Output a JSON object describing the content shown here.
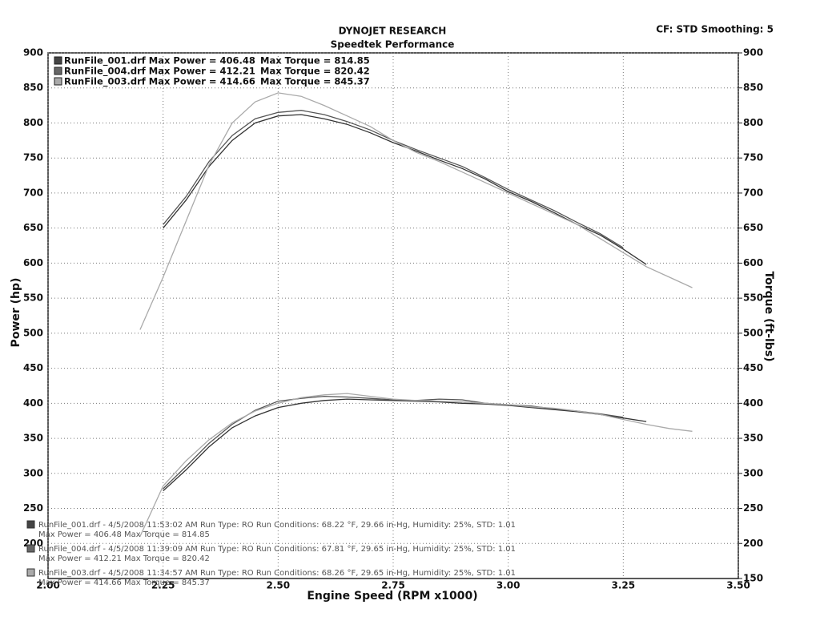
{
  "chart_data": {
    "type": "line",
    "title": "DYNOJET RESEARCH",
    "subtitle": "Speedtek Performance",
    "header_right": "CF: STD  Smoothing: 5",
    "x_label": "Engine Speed (RPM x1000)",
    "y_label": "Power (hp)",
    "y2_label": "Torque (ft-lbs)",
    "xlim": [
      2.0,
      3.5
    ],
    "xticks": [
      {
        "value": 2.0,
        "label": "2.00"
      },
      {
        "value": 2.25,
        "label": "2.25"
      },
      {
        "value": 2.5,
        "label": "2.50"
      },
      {
        "value": 2.75,
        "label": "2.75"
      },
      {
        "value": 3.0,
        "label": "3.00"
      },
      {
        "value": 3.25,
        "label": "3.25"
      },
      {
        "value": 3.5,
        "label": "3.50"
      }
    ],
    "ylim": [
      150,
      900
    ],
    "yticks": [
      200,
      250,
      300,
      350,
      400,
      450,
      500,
      550,
      600,
      650,
      700,
      750,
      800,
      850,
      900
    ],
    "y2lim": [
      150,
      900
    ],
    "y2ticks": [
      150,
      200,
      250,
      300,
      350,
      400,
      450,
      500,
      550,
      600,
      650,
      700,
      750,
      800,
      850,
      900
    ],
    "grid": true,
    "legend": [
      {
        "text": "RunFile_001.drf Max Power = 406.48",
        "torque": "Max Torque = 814.85",
        "color": "#444444"
      },
      {
        "text": "RunFile_004.drf Max Power = 412.21",
        "torque": "Max Torque = 820.42",
        "color": "#666666"
      },
      {
        "text": "RunFile_003.drf Max Power = 414.66",
        "torque": "Max Torque = 845.37",
        "color": "#aaaaaa"
      }
    ],
    "x": [
      2.2,
      2.25,
      2.3,
      2.35,
      2.4,
      2.45,
      2.5,
      2.55,
      2.6,
      2.65,
      2.7,
      2.75,
      2.8,
      2.85,
      2.9,
      2.95,
      3.0,
      3.05,
      3.1,
      3.15,
      3.2,
      3.25,
      3.3,
      3.35,
      3.4
    ],
    "series": [
      {
        "name": "RunFile_001.drf",
        "color": "#333333",
        "axis": "y",
        "values": [
          null,
          275,
          305,
          338,
          365,
          382,
          394,
          400,
          404,
          406,
          405,
          404,
          403,
          402,
          400,
          399,
          397,
          394,
          391,
          388,
          384,
          379,
          374,
          null,
          null
        ]
      },
      {
        "name": "RunFile_004.drf",
        "color": "#555555",
        "axis": "y",
        "values": [
          null,
          278,
          310,
          343,
          370,
          390,
          403,
          407,
          410,
          409,
          407,
          405,
          404,
          406,
          405,
          400,
          398,
          396,
          392,
          389,
          385,
          380,
          null,
          null,
          null
        ]
      },
      {
        "name": "RunFile_003.drf",
        "color": "#aaaaaa",
        "axis": "y",
        "values": [
          210,
          282,
          318,
          348,
          372,
          389,
          400,
          408,
          412,
          414,
          410,
          406,
          404,
          403,
          402,
          400,
          398,
          395,
          393,
          389,
          384,
          377,
          370,
          364,
          360
        ]
      },
      {
        "name": "RunFile_001.drf",
        "color": "#333333",
        "axis": "y2",
        "values": [
          null,
          650,
          690,
          738,
          775,
          800,
          810,
          812,
          806,
          798,
          786,
          772,
          760,
          747,
          735,
          720,
          702,
          688,
          672,
          655,
          640,
          620,
          598,
          null,
          null
        ]
      },
      {
        "name": "RunFile_004.drf",
        "color": "#555555",
        "axis": "y2",
        "values": [
          null,
          655,
          695,
          745,
          782,
          806,
          815,
          818,
          812,
          802,
          790,
          775,
          762,
          750,
          738,
          722,
          705,
          690,
          675,
          658,
          642,
          622,
          null,
          null,
          null
        ]
      },
      {
        "name": "RunFile_003.drf",
        "color": "#aaaaaa",
        "axis": "y2",
        "values": [
          505,
          580,
          660,
          740,
          800,
          830,
          843,
          838,
          825,
          810,
          795,
          775,
          758,
          745,
          730,
          715,
          700,
          685,
          670,
          655,
          635,
          615,
          595,
          580,
          565
        ]
      }
    ],
    "footer": [
      {
        "line1": "RunFile_001.drf - 4/5/2008 11:53:02 AM  Run Type: RO  Run Conditions: 68.22 °F, 29.66 in-Hg,  Humidity:  25%, STD: 1.01",
        "line2": "Max Power = 406.48  Max Torque = 814.85"
      },
      {
        "line1": "RunFile_004.drf - 4/5/2008 11:39:09 AM  Run Type: RO  Run Conditions: 67.81 °F, 29.65 in-Hg,  Humidity:  25%, STD: 1.01",
        "line2": "Max Power = 412.21  Max Torque = 820.42"
      },
      {
        "line1": "RunFile_003.drf - 4/5/2008 11:34:57 AM  Run Type: RO  Run Conditions: 68.26 °F, 29.65 in-Hg,  Humidity:  25%, STD: 1.01",
        "line2": "Max Power = 414.66  Max Torque = 845.37"
      }
    ]
  }
}
